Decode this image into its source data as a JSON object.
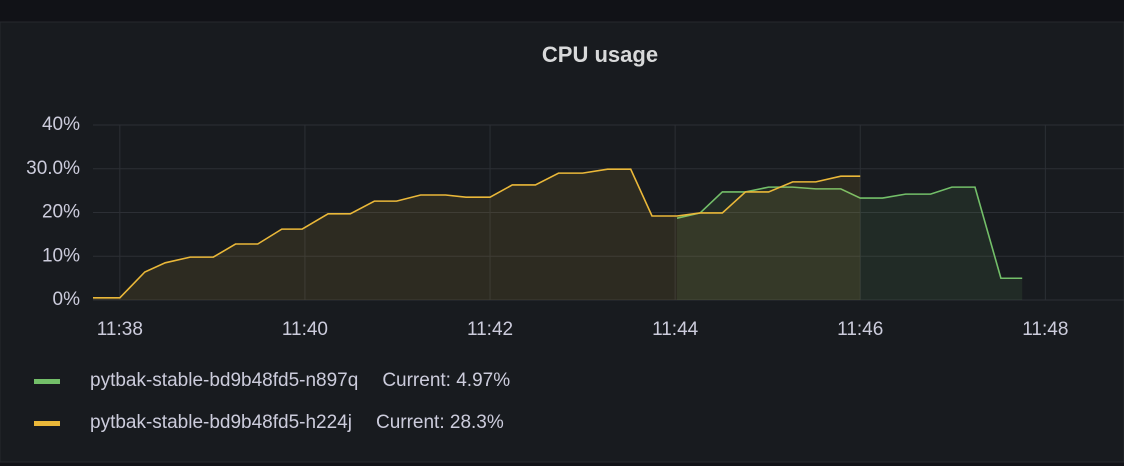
{
  "chart_data": {
    "type": "line",
    "title": "CPU usage",
    "x": [
      697.71,
      698.0,
      698.27,
      698.49,
      698.76,
      699.01,
      699.25,
      699.49,
      699.75,
      699.97,
      700.25,
      700.49,
      700.75,
      700.99,
      701.25,
      701.52,
      701.74,
      702.0,
      702.24,
      702.49,
      702.74,
      703.0,
      703.27,
      703.52,
      703.75,
      704.02,
      704.27,
      704.51,
      704.76,
      705.01,
      705.27,
      705.52,
      705.79,
      706.0,
      706.24,
      706.49,
      706.76,
      706.99,
      707.24,
      707.52,
      707.75
    ],
    "series": [
      {
        "name": "pytbak-stable-bd9b48fd5-n897q",
        "current_label": "Current: 4.97%",
        "color": "#73bf69",
        "values": [
          null,
          null,
          null,
          null,
          null,
          null,
          null,
          null,
          null,
          null,
          null,
          null,
          null,
          null,
          null,
          null,
          null,
          null,
          null,
          null,
          null,
          null,
          null,
          null,
          null,
          18.7,
          19.9,
          24.7,
          24.7,
          25.8,
          25.8,
          25.4,
          25.4,
          23.3,
          23.3,
          24.2,
          24.2,
          25.8,
          25.8,
          4.97,
          4.97
        ]
      },
      {
        "name": "pytbak-stable-bd9b48fd5-h224j",
        "current_label": "Current: 28.3%",
        "color": "#eab839",
        "values": [
          0.5,
          0.5,
          6.4,
          8.5,
          9.8,
          9.8,
          12.8,
          12.8,
          16.2,
          16.2,
          19.7,
          19.7,
          22.6,
          22.6,
          24.0,
          24.0,
          23.5,
          23.5,
          26.3,
          26.3,
          29.0,
          29.0,
          29.9,
          29.9,
          19.2,
          19.2,
          19.9,
          19.9,
          24.7,
          24.7,
          27.0,
          27.0,
          28.3,
          28.3,
          null,
          null,
          null,
          null,
          null,
          null,
          null
        ]
      }
    ],
    "xlim": [
      697.71,
      708.85
    ],
    "xticks": [
      {
        "value": 698,
        "label": "11:38"
      },
      {
        "value": 700,
        "label": "11:40"
      },
      {
        "value": 702,
        "label": "11:42"
      },
      {
        "value": 704,
        "label": "11:44"
      },
      {
        "value": 706,
        "label": "11:46"
      },
      {
        "value": 708,
        "label": "11:48"
      }
    ],
    "ylim": [
      0,
      40
    ],
    "yticks": [
      {
        "value": 0,
        "label": "0%"
      },
      {
        "value": 10,
        "label": "10%"
      },
      {
        "value": 20,
        "label": "20%"
      },
      {
        "value": 30,
        "label": "30.0%"
      },
      {
        "value": 40,
        "label": "40%"
      }
    ],
    "grid": true
  }
}
